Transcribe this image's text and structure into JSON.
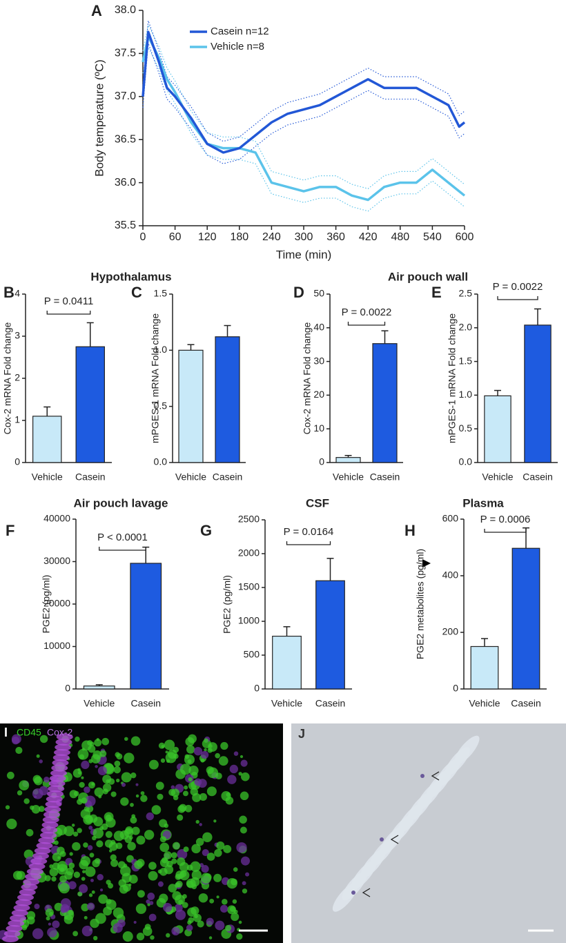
{
  "chart_data": [
    {
      "type": "line",
      "panel": "A",
      "xlabel": "Time (min)",
      "ylabel": "Body temperature (ºC)",
      "x": [
        0,
        10,
        30,
        45,
        60,
        90,
        120,
        150,
        180,
        210,
        240,
        270,
        300,
        330,
        360,
        390,
        420,
        450,
        480,
        510,
        540,
        570,
        590,
        600
      ],
      "xlim": [
        0,
        600
      ],
      "xticks": [
        0,
        60,
        120,
        180,
        240,
        300,
        360,
        420,
        480,
        540,
        600
      ],
      "ylim": [
        35.5,
        38.0
      ],
      "yticks": [
        35.5,
        {
          "value": 36.0,
          "label": "36.0"
        },
        36.5,
        {
          "value": 37.0,
          "label": "37.0"
        },
        37.5,
        {
          "value": 38.0,
          "label": "38.0"
        }
      ],
      "series": [
        {
          "name": "Casein n=12",
          "color": "#2257d6",
          "values": [
            37.0,
            37.75,
            37.4,
            37.1,
            37.0,
            36.75,
            36.45,
            36.35,
            36.4,
            36.55,
            36.7,
            36.8,
            36.85,
            36.9,
            37.0,
            37.1,
            37.2,
            37.1,
            37.1,
            37.1,
            37.0,
            36.9,
            36.65,
            36.7
          ],
          "upper": [
            37.13,
            37.88,
            37.53,
            37.23,
            37.13,
            36.88,
            36.58,
            36.48,
            36.53,
            36.68,
            36.83,
            36.93,
            36.98,
            37.03,
            37.13,
            37.23,
            37.33,
            37.23,
            37.23,
            37.23,
            37.13,
            37.03,
            36.78,
            36.83
          ],
          "lower": [
            36.87,
            37.62,
            37.27,
            36.97,
            36.87,
            36.62,
            36.32,
            36.22,
            36.27,
            36.42,
            36.57,
            36.67,
            36.72,
            36.77,
            36.87,
            36.97,
            37.07,
            36.97,
            36.97,
            36.97,
            36.87,
            36.77,
            36.52,
            36.57
          ]
        },
        {
          "name": "Vehicle n=8",
          "color": "#5bc3ea",
          "values": [
            37.4,
            37.7,
            37.45,
            37.2,
            37.05,
            36.7,
            36.45,
            36.4,
            36.4,
            36.35,
            36.0,
            35.95,
            35.9,
            35.95,
            35.95,
            35.85,
            35.8,
            35.95,
            36.0,
            36.0,
            36.15,
            36.0,
            35.9,
            35.85
          ],
          "upper": [
            37.53,
            37.83,
            37.58,
            37.33,
            37.18,
            36.83,
            36.58,
            36.53,
            36.53,
            36.48,
            36.13,
            36.08,
            36.03,
            36.08,
            36.08,
            35.98,
            35.93,
            36.08,
            36.13,
            36.13,
            36.28,
            36.13,
            36.03,
            35.98
          ],
          "lower": [
            37.27,
            37.57,
            37.32,
            37.07,
            36.92,
            36.57,
            36.32,
            36.27,
            36.27,
            36.22,
            35.87,
            35.82,
            35.77,
            35.82,
            35.82,
            35.72,
            35.67,
            35.82,
            35.87,
            35.87,
            36.02,
            35.87,
            35.77,
            35.72
          ]
        }
      ]
    },
    {
      "type": "bar",
      "panel": "B",
      "title": "Hypothalamus",
      "ylabel": "Cox-2 mRNA Fold change",
      "categories": [
        "Vehicle",
        "Casein"
      ],
      "values": [
        1.1,
        2.75
      ],
      "errors": [
        0.22,
        0.57
      ],
      "colors": [
        "#c8e9f8",
        "#1e5be0"
      ],
      "ylim": [
        0,
        4
      ],
      "yticks": [
        0,
        1,
        2,
        3,
        4
      ],
      "annotation": "P = 0.0411"
    },
    {
      "type": "bar",
      "panel": "C",
      "ylabel": "mPGES-1 mRNA Fold change",
      "categories": [
        "Vehicle",
        "Casein"
      ],
      "values": [
        1.0,
        1.12
      ],
      "errors": [
        0.05,
        0.1
      ],
      "colors": [
        "#c8e9f8",
        "#1e5be0"
      ],
      "ylim": [
        0,
        1.5
      ],
      "yticks": [
        {
          "value": 0,
          "label": "0.0"
        },
        0.5,
        {
          "value": 1,
          "label": "1.0"
        },
        1.5
      ]
    },
    {
      "type": "bar",
      "panel": "D",
      "title": "Air pouch wall",
      "ylabel": "Cox-2 mRNA Fold change",
      "categories": [
        "Vehicle",
        "Casein"
      ],
      "values": [
        1.5,
        35.3
      ],
      "errors": [
        0.6,
        3.8
      ],
      "colors": [
        "#c8e9f8",
        "#1e5be0"
      ],
      "ylim": [
        0,
        50
      ],
      "yticks": [
        0,
        10,
        20,
        30,
        40,
        50
      ],
      "annotation": "P = 0.0022"
    },
    {
      "type": "bar",
      "panel": "E",
      "ylabel": "mPGES-1 mRNA Fold change",
      "categories": [
        "Vehicle",
        "Casein"
      ],
      "values": [
        0.99,
        2.04
      ],
      "errors": [
        0.08,
        0.24
      ],
      "colors": [
        "#c8e9f8",
        "#1e5be0"
      ],
      "ylim": [
        0,
        2.5
      ],
      "yticks": [
        {
          "value": 0,
          "label": "0.0"
        },
        0.5,
        {
          "value": 1,
          "label": "1.0"
        },
        1.5,
        {
          "value": 2,
          "label": "2.0"
        },
        2.5
      ],
      "annotation": "P = 0.0022"
    },
    {
      "type": "bar",
      "panel": "F",
      "title": "Air pouch lavage",
      "ylabel": "PGE2 (pg/ml)",
      "categories": [
        "Vehicle",
        "Casein"
      ],
      "values": [
        700,
        29600
      ],
      "errors": [
        300,
        3800
      ],
      "colors": [
        "#c8e9f8",
        "#1e5be0"
      ],
      "ylim": [
        0,
        40000
      ],
      "yticks": [
        0,
        10000,
        20000,
        30000,
        40000
      ],
      "annotation": "P < 0.0001"
    },
    {
      "type": "bar",
      "panel": "G",
      "title": "CSF",
      "ylabel": "PGE2 (pg/ml)",
      "categories": [
        "Vehicle",
        "Casein"
      ],
      "values": [
        780,
        1600
      ],
      "errors": [
        140,
        330
      ],
      "colors": [
        "#c8e9f8",
        "#1e5be0"
      ],
      "ylim": [
        0,
        2500
      ],
      "yticks": [
        0,
        500,
        1000,
        1500,
        2000,
        2500
      ],
      "annotation": "P = 0.0164"
    },
    {
      "type": "bar",
      "panel": "H",
      "title": "Plasma",
      "ylabel": "PGE2 metabolites (pg/ml)",
      "categories": [
        "Vehicle",
        "Casein"
      ],
      "values": [
        150,
        497
      ],
      "errors": [
        28,
        72
      ],
      "colors": [
        "#c8e9f8",
        "#1e5be0"
      ],
      "ylim": [
        0,
        600
      ],
      "yticks": [
        0,
        200,
        400,
        600
      ],
      "annotation": "P = 0.0006"
    }
  ],
  "images": [
    {
      "panel": "I",
      "labels": [
        "CD45",
        "Cox-2"
      ]
    },
    {
      "panel": "J"
    }
  ]
}
